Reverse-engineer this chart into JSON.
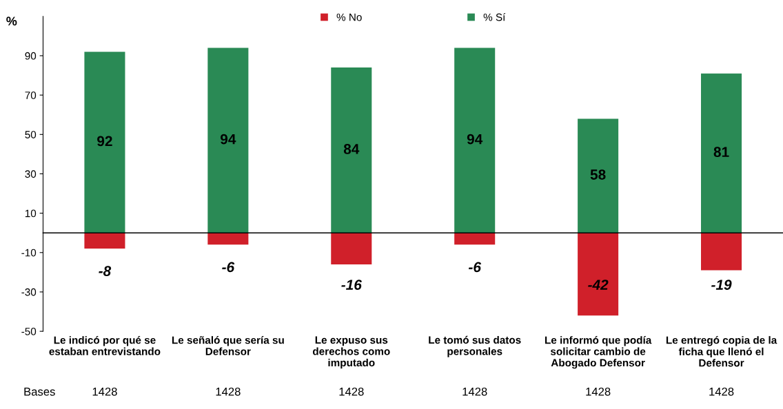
{
  "chart_data": {
    "type": "bar",
    "stacked": true,
    "ylabel": "%",
    "categories": [
      "Le indicó por qué se\nestaban entrevistando",
      "Le señaló que sería su\nDefensor",
      "Le expuso sus\nderechos como\nimputado",
      "Le tomó sus datos\npersonales",
      "Le informó que podía\nsolicitar cambio de\nAbogado Defensor",
      "Le entregó copia de la\nficha que llenó el\nDefensor"
    ],
    "series": [
      {
        "name": "% No",
        "color": "#d0202a",
        "values": [
          -8,
          -6,
          -16,
          -6,
          -42,
          -19
        ]
      },
      {
        "name": "% Sí",
        "color": "#2a8a55",
        "values": [
          92,
          94,
          84,
          94,
          58,
          81
        ]
      }
    ],
    "ylim": [
      -50,
      110
    ],
    "yticks": [
      -50,
      -30,
      -10,
      10,
      30,
      50,
      70,
      90
    ],
    "data_labels": true,
    "legend": "top",
    "grid": false,
    "annotations": [
      "Bases",
      "1428",
      "1428",
      "1428",
      "1428",
      "1428",
      "1428"
    ]
  }
}
